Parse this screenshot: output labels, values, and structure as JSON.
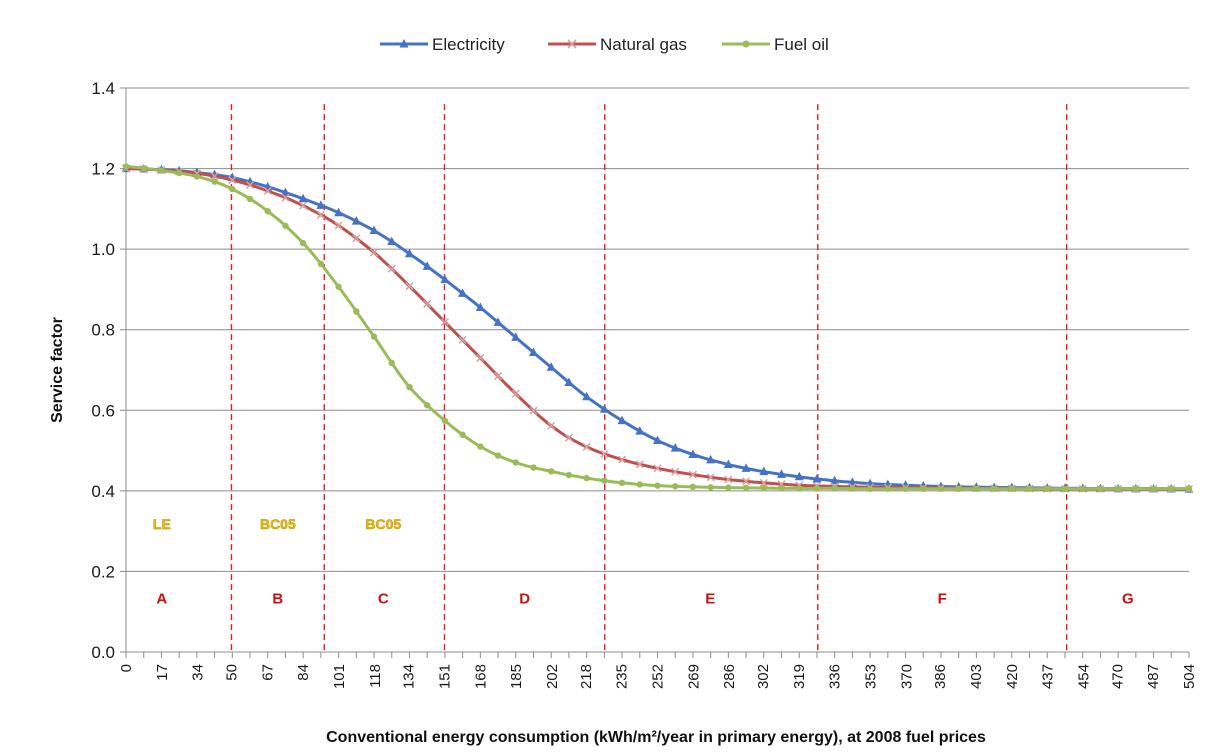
{
  "chart_data": {
    "type": "line",
    "title": "",
    "xlabel": "Conventional energy consumption (kWh/m²/year in primary energy), at 2008 fuel prices",
    "ylabel": "Service factor",
    "xlim": [
      0,
      504
    ],
    "ylim": [
      0,
      1.4
    ],
    "y_ticks": [
      "0.0",
      "0.2",
      "0.4",
      "0.6",
      "0.8",
      "1.0",
      "1.2",
      "1.4"
    ],
    "x_tick_labels": [
      "0",
      "17",
      "34",
      "50",
      "67",
      "84",
      "101",
      "118",
      "134",
      "151",
      "168",
      "185",
      "202",
      "218",
      "235",
      "252",
      "269",
      "286",
      "302",
      "319",
      "336",
      "353",
      "370",
      "386",
      "403",
      "420",
      "437",
      "454",
      "470",
      "487",
      "504"
    ],
    "x": [
      0,
      17,
      34,
      50,
      67,
      84,
      101,
      118,
      134,
      151,
      168,
      185,
      202,
      218,
      235,
      252,
      269,
      286,
      302,
      319,
      336,
      353,
      370,
      386,
      403,
      420,
      437,
      454,
      470,
      487,
      504
    ],
    "legend_position": "top-center",
    "grid": true,
    "series": [
      {
        "name": "Electricity",
        "color": "#4472C4",
        "marker": "triangle",
        "values": [
          1.2,
          1.197,
          1.19,
          1.178,
          1.155,
          1.125,
          1.09,
          1.045,
          0.99,
          0.925,
          0.855,
          0.78,
          0.705,
          0.635,
          0.575,
          0.525,
          0.49,
          0.465,
          0.448,
          0.435,
          0.425,
          0.418,
          0.414,
          0.411,
          0.409,
          0.408,
          0.407,
          0.406,
          0.405,
          0.405,
          0.404
        ]
      },
      {
        "name": "Natural gas",
        "color": "#C0504D",
        "marker": "x",
        "values": [
          1.2,
          1.196,
          1.188,
          1.172,
          1.145,
          1.108,
          1.058,
          0.99,
          0.91,
          0.82,
          0.73,
          0.64,
          0.56,
          0.51,
          0.478,
          0.456,
          0.44,
          0.428,
          0.42,
          0.414,
          0.411,
          0.409,
          0.408,
          0.407,
          0.406,
          0.406,
          0.405,
          0.405,
          0.405,
          0.405,
          0.405
        ]
      },
      {
        "name": "Fuel oil",
        "color": "#9BBB59",
        "marker": "circle",
        "values": [
          1.205,
          1.195,
          1.18,
          1.15,
          1.095,
          1.015,
          0.905,
          0.78,
          0.66,
          0.575,
          0.51,
          0.47,
          0.448,
          0.432,
          0.42,
          0.413,
          0.41,
          0.408,
          0.407,
          0.406,
          0.406,
          0.405,
          0.405,
          0.405,
          0.405,
          0.405,
          0.405,
          0.405,
          0.405,
          0.405,
          0.405
        ]
      }
    ],
    "class_boundaries": [
      50,
      94,
      151,
      227,
      328,
      446
    ],
    "class_labels": [
      {
        "label": "A",
        "x": 17
      },
      {
        "label": "B",
        "x": 72
      },
      {
        "label": "C",
        "x": 122
      },
      {
        "label": "D",
        "x": 189
      },
      {
        "label": "E",
        "x": 277
      },
      {
        "label": "F",
        "x": 387
      },
      {
        "label": "G",
        "x": 475
      }
    ],
    "zone_labels": [
      {
        "label": "LE",
        "x": 17
      },
      {
        "label": "BC05",
        "x": 72
      },
      {
        "label": "BC05",
        "x": 122
      }
    ]
  }
}
